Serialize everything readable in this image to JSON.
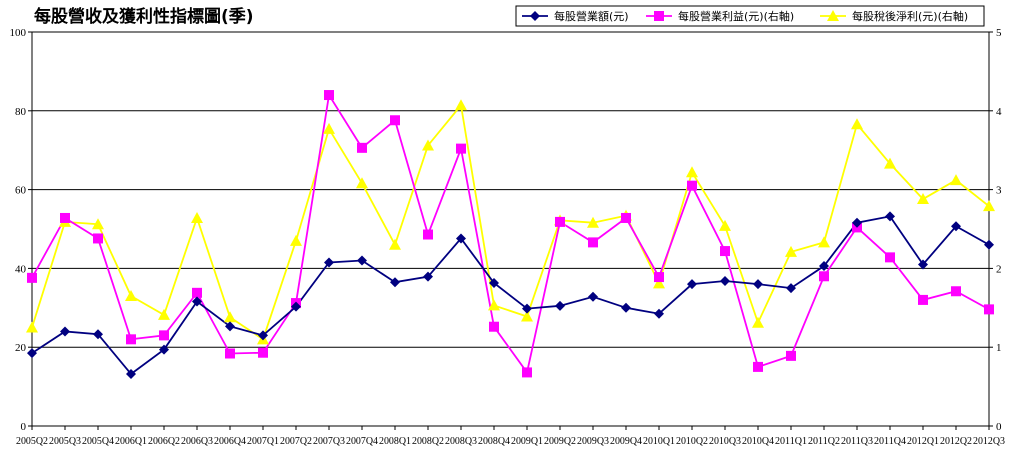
{
  "chart_data": {
    "type": "line",
    "title": "每股營收及獲利性指標圖(季)",
    "categories": [
      "2005Q2",
      "2005Q3",
      "2005Q4",
      "2006Q1",
      "2006Q2",
      "2006Q3",
      "2006Q4",
      "2007Q1",
      "2007Q2",
      "2007Q3",
      "2007Q4",
      "2008Q1",
      "2008Q2",
      "2008Q3",
      "2008Q4",
      "2009Q1",
      "2009Q2",
      "2009Q3",
      "2009Q4",
      "2010Q1",
      "2010Q2",
      "2010Q3",
      "2010Q4",
      "2011Q1",
      "2011Q2",
      "2011Q3",
      "2011Q4",
      "2012Q1",
      "2012Q2",
      "2012Q3"
    ],
    "ylim_left": [
      0,
      100
    ],
    "yticks_left": [
      0,
      20,
      40,
      60,
      80,
      100
    ],
    "ylim_right": [
      0,
      5
    ],
    "yticks_right": [
      0,
      1,
      2,
      3,
      4,
      5
    ],
    "grid": true,
    "legend_position": "top-right",
    "series": [
      {
        "name": "每股營業額(元)",
        "axis": "left",
        "color": "#000080",
        "marker": "diamond",
        "values": [
          18.5,
          24.0,
          23.3,
          13.2,
          19.4,
          31.6,
          25.3,
          23.0,
          30.3,
          41.5,
          42.0,
          36.5,
          37.9,
          47.6,
          36.3,
          29.8,
          30.5,
          32.8,
          30.0,
          28.5,
          36.0,
          36.8,
          36.0,
          35.0,
          40.6,
          51.6,
          53.2,
          41.0,
          50.7,
          46.0
        ]
      },
      {
        "name": "每股營業利益(元)(右軸)",
        "axis": "right",
        "color": "#FF00FF",
        "marker": "square",
        "values": [
          1.88,
          2.64,
          2.38,
          1.1,
          1.15,
          1.69,
          0.92,
          0.93,
          1.56,
          4.2,
          3.53,
          3.88,
          2.43,
          3.52,
          1.26,
          0.68,
          2.59,
          2.33,
          2.64,
          1.89,
          3.05,
          2.22,
          0.75,
          0.89,
          1.9,
          2.52,
          2.14,
          1.6,
          1.71,
          1.48
        ]
      },
      {
        "name": "每股稅後淨利(元)(右軸)",
        "axis": "right",
        "color": "#FFFF00",
        "marker": "triangle",
        "values": [
          1.25,
          2.59,
          2.56,
          1.65,
          1.41,
          2.64,
          1.38,
          1.1,
          2.35,
          3.77,
          3.08,
          2.3,
          3.56,
          4.07,
          1.53,
          1.39,
          2.61,
          2.58,
          2.67,
          1.81,
          3.22,
          2.54,
          1.31,
          2.21,
          2.33,
          3.83,
          3.33,
          2.88,
          3.12,
          2.79
        ]
      }
    ]
  }
}
